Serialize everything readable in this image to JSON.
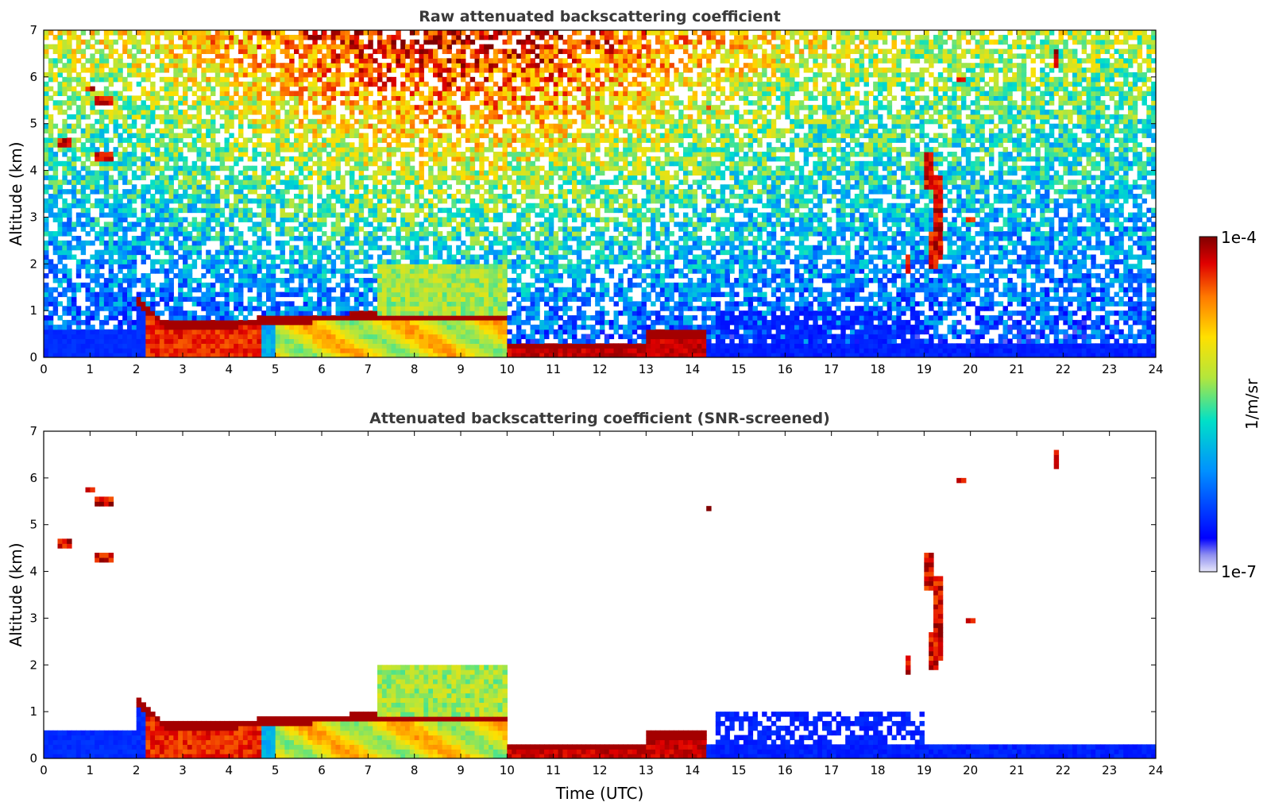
{
  "chart_data": [
    {
      "type": "heatmap",
      "title": "Raw attenuated backscattering coefficient",
      "xlabel": "",
      "ylabel": "Altitude (km)",
      "xlim": [
        0,
        24
      ],
      "ylim": [
        0,
        7
      ],
      "xticks": [
        "0",
        "1",
        "2",
        "3",
        "4",
        "5",
        "6",
        "7",
        "8",
        "9",
        "10",
        "11",
        "12",
        "13",
        "14",
        "15",
        "16",
        "17",
        "18",
        "19",
        "20",
        "21",
        "22",
        "23",
        "24"
      ],
      "yticks": [
        "0",
        "1",
        "2",
        "3",
        "4",
        "5",
        "6",
        "7"
      ],
      "screened": false
    },
    {
      "type": "heatmap",
      "title": "Attenuated backscattering coefficient (SNR-screened)",
      "xlabel": "Time (UTC)",
      "ylabel": "Altitude (km)",
      "xlim": [
        0,
        24
      ],
      "ylim": [
        0,
        7
      ],
      "xticks": [
        "0",
        "1",
        "2",
        "3",
        "4",
        "5",
        "6",
        "7",
        "8",
        "9",
        "10",
        "11",
        "12",
        "13",
        "14",
        "15",
        "16",
        "17",
        "18",
        "19",
        "20",
        "21",
        "22",
        "23",
        "24"
      ],
      "yticks": [
        "0",
        "1",
        "2",
        "3",
        "4",
        "5",
        "6",
        "7"
      ],
      "screened": true
    }
  ],
  "colorbar": {
    "label": "1/m/sr",
    "max_label": "1e-4",
    "min_label": "1e-7",
    "scale": "log",
    "range": [
      1e-07,
      0.0001
    ],
    "colors": [
      "#e6e6fa",
      "#0000ff",
      "#00a0ff",
      "#00e0c0",
      "#c8e628",
      "#ffd700",
      "#ff6a00",
      "#d10000",
      "#800000"
    ]
  }
}
